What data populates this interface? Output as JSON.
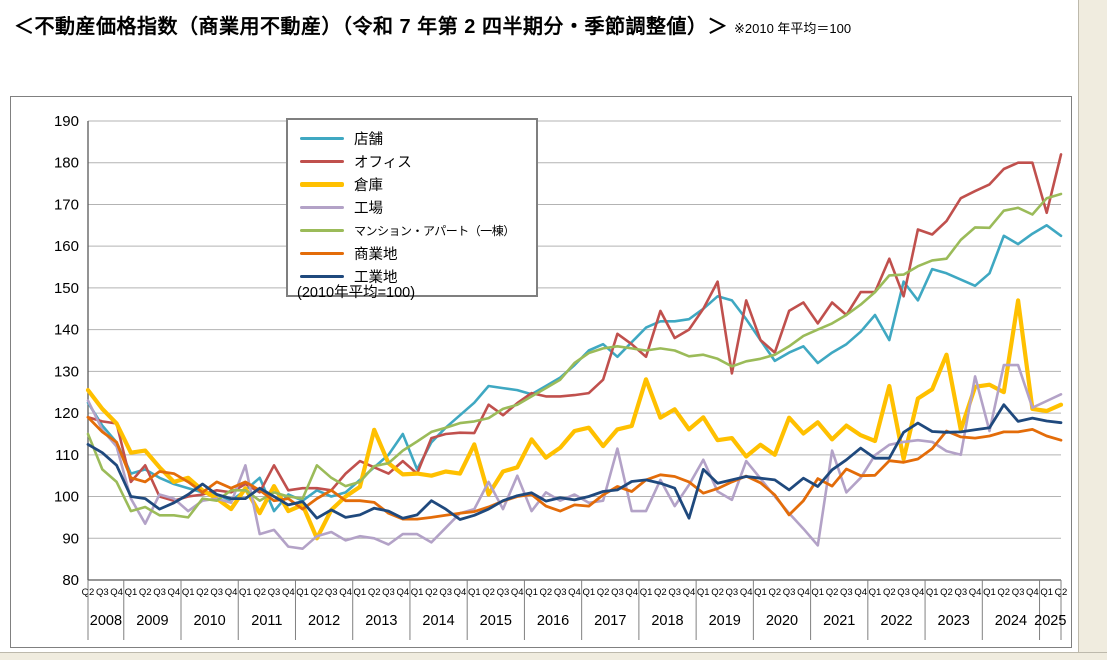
{
  "header": {
    "title": "＜不動産価格指数（商業用不動産）（令和 7 年第 2 四半期分・季節調整値）＞",
    "note": "※2010 年平均＝100"
  },
  "chart_data": {
    "type": "line",
    "annotation": "(2010年平均=100)",
    "ylim": [
      80,
      190
    ],
    "ytick_step": 10,
    "grid": true,
    "legend_position": "top-center-inside",
    "axis_color": "#595959",
    "grid_color": "#B3B3B3",
    "separator_color": "#808080",
    "years": [
      {
        "label": "2008",
        "quarters": [
          "Q2",
          "Q3",
          "Q4"
        ]
      },
      {
        "label": "2009",
        "quarters": [
          "Q1",
          "Q2",
          "Q3",
          "Q4"
        ]
      },
      {
        "label": "2010",
        "quarters": [
          "Q1",
          "Q2",
          "Q3",
          "Q4"
        ]
      },
      {
        "label": "2011",
        "quarters": [
          "Q1",
          "Q2",
          "Q3",
          "Q4"
        ]
      },
      {
        "label": "2012",
        "quarters": [
          "Q1",
          "Q2",
          "Q3",
          "Q4"
        ]
      },
      {
        "label": "2013",
        "quarters": [
          "Q1",
          "Q2",
          "Q3",
          "Q4"
        ]
      },
      {
        "label": "2014",
        "quarters": [
          "Q1",
          "Q2",
          "Q3",
          "Q4"
        ]
      },
      {
        "label": "2015",
        "quarters": [
          "Q1",
          "Q2",
          "Q3",
          "Q4"
        ]
      },
      {
        "label": "2016",
        "quarters": [
          "Q1",
          "Q2",
          "Q3",
          "Q4"
        ]
      },
      {
        "label": "2017",
        "quarters": [
          "Q1",
          "Q2",
          "Q3",
          "Q4"
        ]
      },
      {
        "label": "2018",
        "quarters": [
          "Q1",
          "Q2",
          "Q3",
          "Q4"
        ]
      },
      {
        "label": "2019",
        "quarters": [
          "Q1",
          "Q2",
          "Q3",
          "Q4"
        ]
      },
      {
        "label": "2020",
        "quarters": [
          "Q1",
          "Q2",
          "Q3",
          "Q4"
        ]
      },
      {
        "label": "2021",
        "quarters": [
          "Q1",
          "Q2",
          "Q3",
          "Q4"
        ]
      },
      {
        "label": "2022",
        "quarters": [
          "Q1",
          "Q2",
          "Q3",
          "Q4"
        ]
      },
      {
        "label": "2023",
        "quarters": [
          "Q1",
          "Q2",
          "Q3",
          "Q4"
        ]
      },
      {
        "label": "2024",
        "quarters": [
          "Q1",
          "Q2",
          "Q3",
          "Q4"
        ]
      },
      {
        "label": "2025",
        "quarters": [
          "Q1",
          "Q2"
        ]
      }
    ],
    "series": [
      {
        "name": "店舗",
        "color": "#3FA8C2",
        "width": 2.6,
        "values": [
          122.5,
          117,
          113,
          105.5,
          106.5,
          104.5,
          103,
          102,
          101,
          100.5,
          99,
          101.5,
          104.5,
          96.5,
          100.5,
          99,
          101.5,
          100,
          101,
          104,
          107,
          110,
          115,
          106.5,
          113,
          116.5,
          119.5,
          122.5,
          126.5,
          126,
          125.5,
          124.5,
          126.5,
          128.5,
          131.5,
          135,
          136.5,
          133.5,
          137,
          140.5,
          142,
          142,
          142.5,
          145,
          148,
          147,
          142.5,
          137.5,
          132.5,
          134.5,
          136,
          132,
          134.5,
          136.5,
          139.5,
          143.5,
          137.5,
          151.5,
          147,
          154.5,
          153.5,
          152,
          150.5,
          153.5,
          162.5,
          160.5,
          163,
          165,
          162.5
        ]
      },
      {
        "name": "オフィス",
        "color": "#C0504D",
        "width": 2.6,
        "values": [
          119,
          118,
          117.5,
          103.5,
          107.5,
          100,
          99,
          100,
          100.5,
          101.5,
          101,
          103,
          101,
          107.5,
          101.5,
          102,
          102,
          101.5,
          105.5,
          108.5,
          107,
          105.5,
          108.5,
          105.5,
          114,
          115,
          115.3,
          115.2,
          122,
          119.5,
          122.4,
          124.8,
          124,
          124,
          124.3,
          124.8,
          128,
          139,
          136.5,
          133.5,
          144.5,
          138,
          140,
          145,
          151.5,
          129.5,
          147,
          137.5,
          134.5,
          144.5,
          146.5,
          141.5,
          146.5,
          143.5,
          149,
          149,
          157,
          148,
          164,
          162.8,
          166,
          171.5,
          173.2,
          174.8,
          178.5,
          180,
          180,
          168,
          182
        ]
      },
      {
        "name": "倉庫",
        "color": "#FFC000",
        "width": 4.2,
        "values": [
          125.5,
          121,
          117.5,
          110.5,
          111,
          107,
          103.5,
          104.5,
          101.5,
          99.5,
          97,
          102,
          96,
          102.5,
          96.5,
          98,
          90,
          96.8,
          100,
          102.3,
          116,
          108,
          105.3,
          105.5,
          105,
          106,
          105.5,
          112.5,
          100.5,
          106,
          107,
          113.7,
          109.3,
          111.7,
          115.7,
          116.5,
          112.1,
          116.1,
          116.9,
          128.1,
          118.9,
          120.9,
          116.1,
          119,
          113.5,
          114,
          109.6,
          112.4,
          110,
          118.9,
          115.1,
          117.8,
          113.7,
          117,
          114.7,
          113.3,
          126.5,
          109,
          123.5,
          125.7,
          134,
          116,
          126.3,
          126.8,
          125,
          147,
          121,
          120.5,
          122
        ]
      },
      {
        "name": "工場",
        "color": "#B3A2C7",
        "width": 2.6,
        "values": [
          123,
          116,
          112,
          99.5,
          93.5,
          100.5,
          99.5,
          96.5,
          99,
          99.5,
          98.5,
          107.5,
          91,
          92,
          88,
          87.5,
          90.5,
          91.5,
          89.5,
          90.5,
          90,
          88.5,
          91,
          91,
          89,
          92.5,
          96,
          97,
          103.5,
          97,
          105,
          96.5,
          101,
          99,
          100.5,
          98.5,
          99,
          111.5,
          96.5,
          96.5,
          104,
          97.7,
          102.8,
          108.8,
          101.2,
          99.2,
          108.5,
          104.3,
          100,
          96,
          92.3,
          88.3,
          111,
          101,
          104.5,
          109.9,
          112.4,
          113.1,
          113.5,
          113.1,
          110.9,
          110,
          128.8,
          115.7,
          131.5,
          131.5,
          121.3,
          122.9,
          124.5
        ]
      },
      {
        "name": "マンション・アパート（一棟）",
        "color": "#9BBB59",
        "width": 2.6,
        "values": [
          115,
          106.5,
          103.5,
          96.5,
          97.5,
          95.5,
          95.5,
          95,
          99.5,
          99,
          101.5,
          101.5,
          99,
          101,
          100,
          99.5,
          107.5,
          104.5,
          102.5,
          103.5,
          107.3,
          108,
          111,
          113.2,
          115.5,
          116.5,
          117.6,
          118,
          118.8,
          121,
          122,
          124,
          126,
          128,
          132,
          134.4,
          135.5,
          136,
          135.5,
          135,
          135.5,
          135,
          133.6,
          134,
          133,
          131.2,
          132.4,
          133,
          134,
          136,
          138.5,
          140,
          141.5,
          143.5,
          146,
          149,
          153,
          153.2,
          155.2,
          156.6,
          157,
          161.5,
          164.5,
          164.4,
          168.5,
          169.2,
          167.6,
          171.5,
          172.5
        ]
      },
      {
        "name": "商業地",
        "color": "#E36C09",
        "width": 2.8,
        "values": [
          119,
          115.5,
          113,
          104.5,
          103.5,
          106,
          105.5,
          103.5,
          101,
          103.5,
          102,
          103.5,
          101.5,
          99,
          99.5,
          97,
          99.5,
          101.5,
          99,
          99,
          98.6,
          96,
          94.6,
          94.6,
          95,
          95.5,
          96,
          96.4,
          97.5,
          98.9,
          100,
          100.5,
          97.7,
          96.5,
          98,
          97.7,
          100.4,
          102.4,
          101.2,
          104,
          105.2,
          104.8,
          103.5,
          100.8,
          101.9,
          103.5,
          104.9,
          103.3,
          100.4,
          95.6,
          99,
          104.3,
          102.5,
          106.6,
          105,
          105.1,
          108.6,
          108.2,
          109,
          111.5,
          115.7,
          114.3,
          114,
          114.5,
          115.5,
          115.5,
          116.1,
          114.5,
          113.5
        ]
      },
      {
        "name": "工業地",
        "color": "#1F497D",
        "width": 2.8,
        "values": [
          112.5,
          110.5,
          107.5,
          100,
          99.5,
          97,
          98.5,
          100.5,
          103,
          100.5,
          99.5,
          99.5,
          102,
          100,
          98,
          98.8,
          94.8,
          96.8,
          95,
          95.6,
          97.2,
          96.5,
          94.8,
          95.6,
          99,
          97,
          94.5,
          95.5,
          97,
          99,
          100.2,
          100.9,
          98.9,
          99.7,
          99.2,
          100,
          101.2,
          101.6,
          103.6,
          104,
          103.2,
          102,
          94.8,
          106.5,
          103.2,
          104,
          104.8,
          104.4,
          104,
          101.6,
          104.4,
          102.4,
          106.4,
          108.8,
          111.6,
          109.2,
          109.2,
          115.4,
          117.6,
          115.6,
          115.4,
          115.5,
          116,
          116.5,
          122,
          118,
          118.8,
          118.1,
          117.7
        ]
      }
    ]
  }
}
